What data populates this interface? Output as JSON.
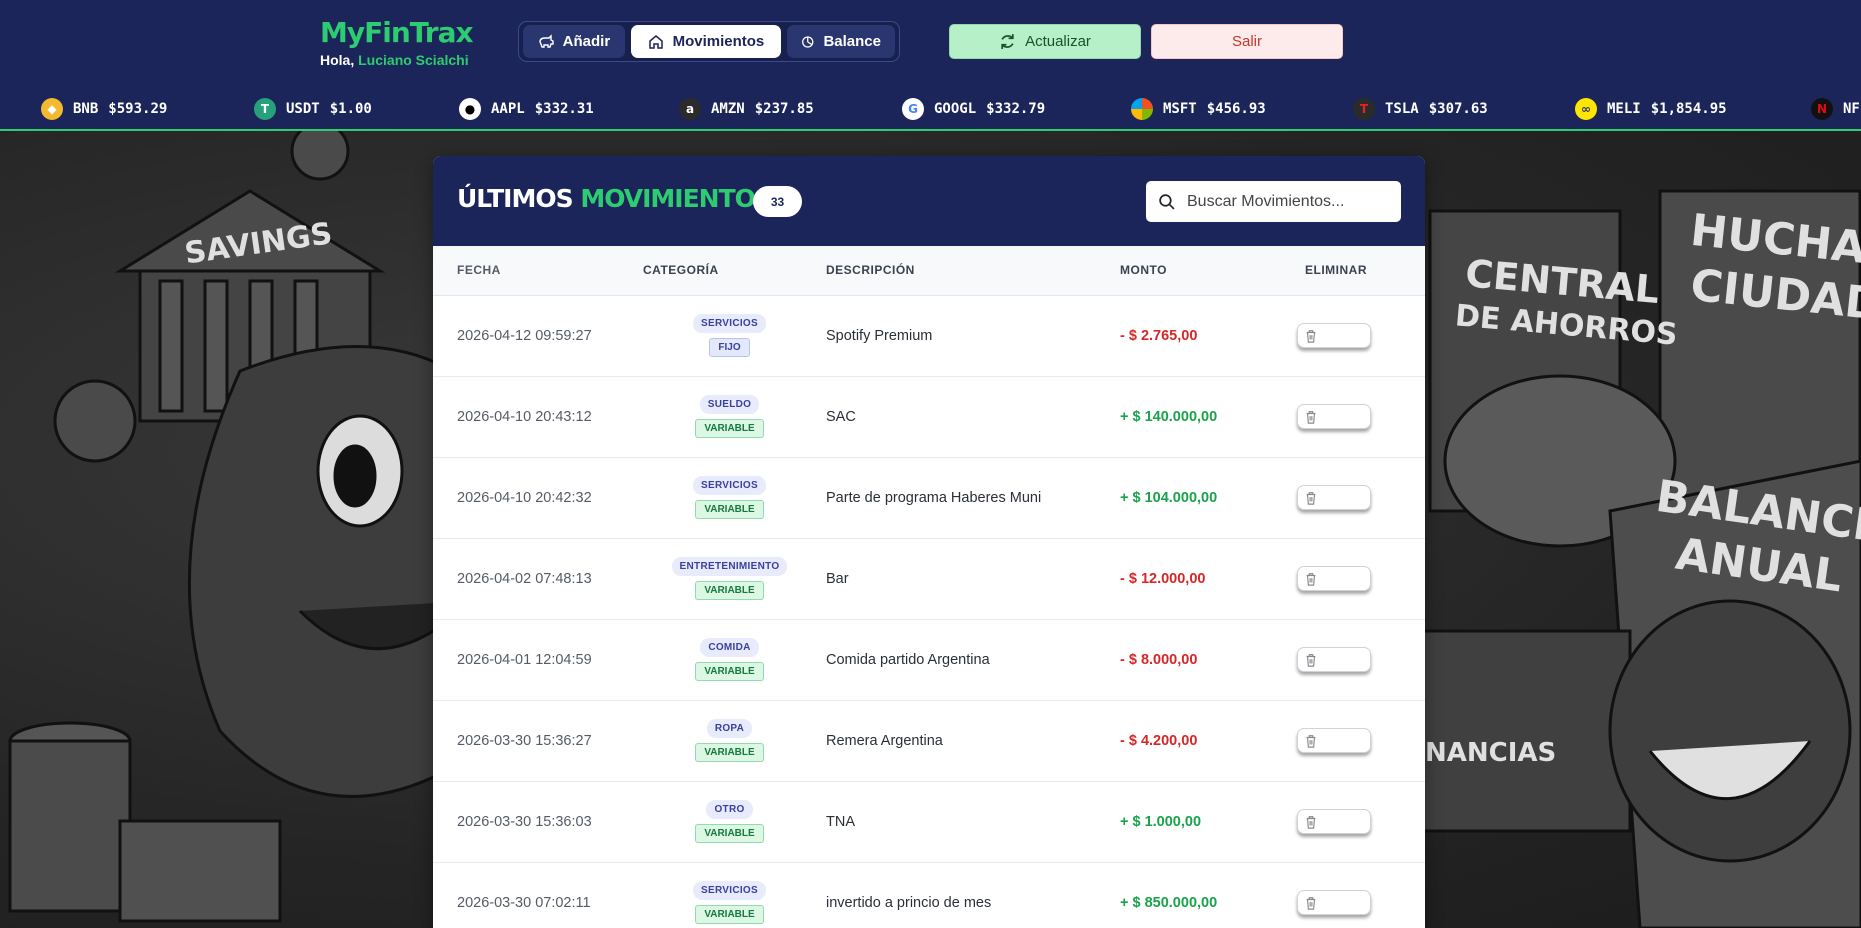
{
  "header": {
    "logo_part1": "MyFin",
    "logo_part2": "Trax",
    "greeting": "Hola,",
    "user": "Luciano Scialchi",
    "nav": [
      {
        "label": "Añadir",
        "icon": "piggy-icon"
      },
      {
        "label": "Movimientos",
        "icon": "home-icon"
      },
      {
        "label": "Balance",
        "icon": "pie-icon"
      }
    ],
    "active_tab": "Movimientos",
    "update_label": "Actualizar",
    "exit_label": "Salir"
  },
  "ticker": [
    {
      "symbol": "BNB",
      "price": "$593.29",
      "icon": "bnb-icon",
      "color": "#f3ba2f"
    },
    {
      "symbol": "USDT",
      "price": "$1.00",
      "icon": "tether-icon",
      "color": "#26a17b"
    },
    {
      "symbol": "AAPL",
      "price": "$332.31",
      "icon": "apple-icon",
      "color": "#ffffff"
    },
    {
      "symbol": "AMZN",
      "price": "$237.85",
      "icon": "amazon-icon",
      "color": "#ffffff"
    },
    {
      "symbol": "GOOGL",
      "price": "$332.79",
      "icon": "google-icon",
      "color": "#ffffff"
    },
    {
      "symbol": "MSFT",
      "price": "$456.93",
      "icon": "microsoft-icon",
      "color": "#ffffff"
    },
    {
      "symbol": "TSLA",
      "price": "$307.63",
      "icon": "tesla-icon",
      "color": "#e82127"
    },
    {
      "symbol": "MELI",
      "price": "$1,854.95",
      "icon": "mercadolibre-icon",
      "color": "#ffe600"
    },
    {
      "symbol": "NF",
      "price": "",
      "icon": "netflix-icon",
      "color": "#e50914"
    }
  ],
  "movements": {
    "title_part1": "ÚLTIMOS",
    "title_part2": "MOVIMIENTOS",
    "count": "33",
    "search_placeholder": "Buscar Movimientos...",
    "columns": [
      "FECHA",
      "CATEGORÍA",
      "DESCRIPCIÓN",
      "MONTO",
      "ELIMINAR"
    ],
    "rows": [
      {
        "date": "2026-04-12 09:59:27",
        "category": "SERVICIOS",
        "type": "FIJO",
        "description": "Spotify Premium",
        "amount": "- $ 2.765,00",
        "sign": "neg"
      },
      {
        "date": "2026-04-10 20:43:12",
        "category": "SUELDO",
        "type": "VARIABLE",
        "description": "SAC",
        "amount": "+ $ 140.000,00",
        "sign": "pos"
      },
      {
        "date": "2026-04-10 20:42:32",
        "category": "SERVICIOS",
        "type": "VARIABLE",
        "description": "Parte de programa Haberes Muni",
        "amount": "+ $ 104.000,00",
        "sign": "pos"
      },
      {
        "date": "2026-04-02 07:48:13",
        "category": "ENTRETENIMIENTO",
        "type": "VARIABLE",
        "description": "Bar",
        "amount": "- $ 12.000,00",
        "sign": "neg"
      },
      {
        "date": "2026-04-01 12:04:59",
        "category": "COMIDA",
        "type": "VARIABLE",
        "description": "Comida partido Argentina",
        "amount": "- $ 8.000,00",
        "sign": "neg"
      },
      {
        "date": "2026-03-30 15:36:27",
        "category": "ROPA",
        "type": "VARIABLE",
        "description": "Remera Argentina",
        "amount": "- $ 4.200,00",
        "sign": "neg"
      },
      {
        "date": "2026-03-30 15:36:03",
        "category": "OTRO",
        "type": "VARIABLE",
        "description": "TNA",
        "amount": "+ $ 1.000,00",
        "sign": "pos"
      },
      {
        "date": "2026-03-30 07:02:11",
        "category": "SERVICIOS",
        "type": "VARIABLE",
        "description": "invertido a princio de mes",
        "amount": "+ $ 850.000,00",
        "sign": "pos"
      }
    ]
  },
  "background_text": {
    "savings": "SAVINGS",
    "central": "CENTRAL",
    "de_ahorros": "DE AHORROS",
    "hucha": "HUCHA",
    "ciudad": "CIUDAD",
    "balance": "BALANCE",
    "anual": "ANUAL",
    "financias": "NANCIAS"
  },
  "colors": {
    "navy": "#1c2559",
    "green": "#2ecc71",
    "red": "#d62828"
  }
}
